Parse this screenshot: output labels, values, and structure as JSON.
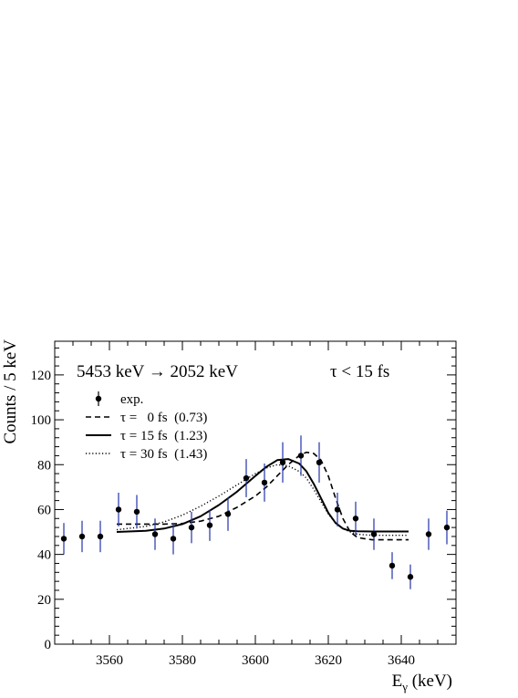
{
  "chart_data": {
    "type": "scatter",
    "title": "5453 keV → 2052 keV",
    "annotation": "τ < 15 fs",
    "xlabel_main": "E",
    "xlabel_sub": "γ",
    "xlabel_unit": " (keV)",
    "ylabel": "Counts / 5 keV",
    "xlim": [
      3545,
      3655
    ],
    "ylim": [
      0,
      135
    ],
    "x_ticks": [
      3560,
      3580,
      3600,
      3620,
      3640
    ],
    "y_ticks": [
      0,
      20,
      40,
      60,
      80,
      100,
      120
    ],
    "grid": false,
    "legend_position": "top-left",
    "colors": {
      "points": "#000000",
      "error_bars": "#2233aa",
      "curves": "#000000"
    },
    "data": {
      "name": "exp.",
      "x": [
        3547.5,
        3552.5,
        3557.5,
        3562.5,
        3567.5,
        3572.5,
        3577.5,
        3582.5,
        3587.5,
        3592.5,
        3597.5,
        3602.5,
        3607.5,
        3612.5,
        3617.5,
        3622.5,
        3627.5,
        3632.5,
        3637.5,
        3642.5,
        3647.5,
        3652.5
      ],
      "y": [
        47,
        48,
        48,
        60,
        59,
        49,
        47,
        52,
        53,
        58,
        74,
        72,
        81,
        84,
        81,
        60,
        56,
        49,
        35,
        30,
        49,
        52
      ],
      "err": [
        7,
        7,
        7,
        7.5,
        7.5,
        7,
        7,
        7,
        7,
        7.5,
        8.5,
        8.5,
        9,
        9,
        9,
        7.5,
        7.5,
        7,
        6,
        5.5,
        7,
        7.5
      ]
    },
    "series": [
      {
        "name": "τ =   0 fs  (0.73)",
        "style": "dashed",
        "x": [
          3562,
          3570,
          3575,
          3580,
          3585,
          3590,
          3595,
          3600,
          3603,
          3606,
          3609,
          3612,
          3614,
          3616,
          3618,
          3620,
          3622,
          3624,
          3626,
          3628,
          3632,
          3637,
          3642
        ],
        "y": [
          53.5,
          53.5,
          53.5,
          53.8,
          54.8,
          57,
          61,
          66,
          70,
          75,
          80,
          84,
          85.5,
          85,
          82,
          75,
          65,
          56,
          50,
          47.5,
          46.5,
          46.5,
          46.5
        ]
      },
      {
        "name": "τ = 15 fs  (1.23)",
        "style": "solid",
        "x": [
          3562,
          3570,
          3575,
          3580,
          3585,
          3590,
          3595,
          3600,
          3603,
          3606,
          3609,
          3612,
          3614,
          3616,
          3618,
          3620,
          3622,
          3624,
          3626,
          3628,
          3632,
          3637,
          3642
        ],
        "y": [
          50,
          50.5,
          51.5,
          53.5,
          57,
          62,
          68,
          75,
          79,
          82,
          82.5,
          80.5,
          77,
          71.5,
          65,
          58.5,
          54,
          51.5,
          50.5,
          50.3,
          50.2,
          50.2,
          50.2
        ]
      },
      {
        "name": "τ = 30 fs  (1.43)",
        "style": "dotted",
        "x": [
          3562,
          3570,
          3575,
          3580,
          3585,
          3590,
          3595,
          3600,
          3603,
          3606,
          3609,
          3612,
          3614,
          3616,
          3618,
          3620,
          3622,
          3624,
          3626,
          3628,
          3632,
          3637,
          3642
        ],
        "y": [
          51,
          52.5,
          54.5,
          57.5,
          61.5,
          66,
          71,
          76,
          78.5,
          80,
          79.5,
          77,
          74,
          69,
          63.5,
          58,
          54,
          51.5,
          50,
          49,
          48.5,
          48.5,
          48.5
        ]
      }
    ]
  }
}
